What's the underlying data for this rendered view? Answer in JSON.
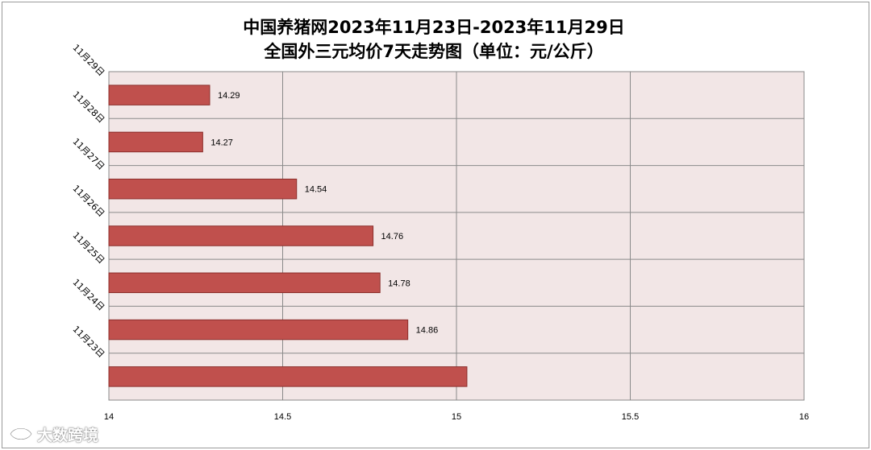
{
  "chart_data": {
    "type": "bar",
    "orientation": "horizontal",
    "title": "中国养猪网2023年11月23日-2023年11月29日",
    "subtitle": "全国外三元均价7天走势图（单位：元/公斤）",
    "categories": [
      "11月29日",
      "11月28日",
      "11月27日",
      "11月26日",
      "11月25日",
      "11月24日",
      "11月23日"
    ],
    "series": [
      {
        "values": [
          14.29,
          14.27,
          14.54,
          14.76,
          14.78,
          14.86,
          15.03
        ]
      }
    ],
    "data_labels": [
      "14.29",
      "14.27",
      "14.54",
      "14.76",
      "14.78",
      "14.86",
      ""
    ],
    "xlim": [
      14,
      16
    ],
    "xticks": [
      "14",
      "14.5",
      "15",
      "15.5",
      "16"
    ],
    "grid": true,
    "legend": "none",
    "colors": {
      "bar_fill": "#c0504d",
      "bar_stroke": "#8c2f2c",
      "plot_bg": "#f2e6e6",
      "grid": "#8a8a8a"
    }
  },
  "watermark": {
    "icon": "eye-logo-icon",
    "text": "大数跨境"
  }
}
